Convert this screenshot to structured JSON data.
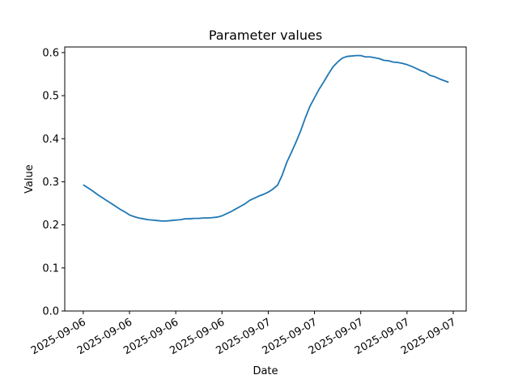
{
  "chart_data": {
    "type": "line",
    "title": "Parameter values",
    "x_label": "Date",
    "y_label": "Value",
    "x": [
      0,
      1,
      2,
      3,
      4,
      5,
      6,
      7,
      8,
      9,
      10,
      11,
      12,
      13,
      14,
      15,
      16,
      17,
      18,
      19,
      20,
      21,
      22,
      23,
      24,
      25,
      26,
      27,
      28,
      29,
      30,
      31,
      32,
      33,
      34,
      35,
      36,
      37,
      38,
      39,
      40,
      41,
      42,
      43,
      44,
      45,
      46,
      47,
      48,
      49,
      50,
      51,
      52,
      53,
      54,
      55,
      56,
      57,
      58,
      59,
      60,
      61,
      62,
      63,
      64,
      65,
      66,
      67,
      68,
      69,
      70,
      71,
      72,
      73,
      74,
      75,
      76,
      77,
      78,
      79
    ],
    "series": [
      {
        "color": "#1f77b4",
        "values": [
          0.293,
          0.286,
          0.279,
          0.271,
          0.264,
          0.257,
          0.25,
          0.243,
          0.236,
          0.23,
          0.223,
          0.219,
          0.216,
          0.214,
          0.212,
          0.211,
          0.21,
          0.209,
          0.209,
          0.21,
          0.211,
          0.212,
          0.214,
          0.214,
          0.215,
          0.215,
          0.216,
          0.216,
          0.217,
          0.218,
          0.221,
          0.226,
          0.231,
          0.237,
          0.243,
          0.249,
          0.257,
          0.262,
          0.267,
          0.271,
          0.276,
          0.283,
          0.292,
          0.315,
          0.345,
          0.368,
          0.392,
          0.418,
          0.448,
          0.475,
          0.495,
          0.515,
          0.532,
          0.55,
          0.567,
          0.578,
          0.587,
          0.591,
          0.592,
          0.593,
          0.593,
          0.59,
          0.59,
          0.588,
          0.586,
          0.582,
          0.581,
          0.578,
          0.577,
          0.575,
          0.572,
          0.568,
          0.563,
          0.558,
          0.554,
          0.547,
          0.544,
          0.539,
          0.535,
          0.531
        ]
      }
    ],
    "xlim": [
      -4,
      82.8
    ],
    "xticks": [
      {
        "value": 0,
        "label": "2025-09-06"
      },
      {
        "value": 10,
        "label": "2025-09-06"
      },
      {
        "value": 20,
        "label": "2025-09-06"
      },
      {
        "value": 30,
        "label": "2025-09-06"
      },
      {
        "value": 40,
        "label": "2025-09-07"
      },
      {
        "value": 50,
        "label": "2025-09-07"
      },
      {
        "value": 60,
        "label": "2025-09-07"
      },
      {
        "value": 70,
        "label": "2025-09-07"
      },
      {
        "value": 80,
        "label": "2025-09-07"
      }
    ],
    "ylim": [
      0,
      0.613
    ],
    "yticks": [
      {
        "value": 0,
        "label": "0.0"
      },
      0.1,
      0.2,
      0.3,
      0.4,
      0.5,
      0.6
    ],
    "grid": false
  }
}
